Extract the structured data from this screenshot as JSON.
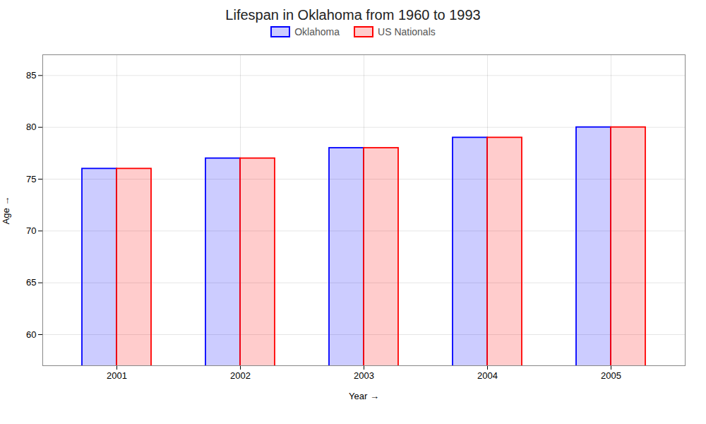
{
  "chart_data": {
    "type": "bar",
    "title": "Lifespan in Oklahoma from 1960 to 1993",
    "xlabel": "Year",
    "ylabel": "Age",
    "categories": [
      "2001",
      "2002",
      "2003",
      "2004",
      "2005"
    ],
    "series": [
      {
        "name": "Oklahoma",
        "color": "#0000ff",
        "values": [
          76,
          77,
          78,
          79,
          80
        ]
      },
      {
        "name": "US Nationals",
        "color": "#ff0000",
        "values": [
          76,
          77,
          78,
          79,
          80
        ]
      }
    ],
    "ylim": [
      57,
      87
    ],
    "yticks": [
      60,
      65,
      70,
      75,
      80,
      85
    ],
    "grid": true,
    "legend": "top"
  }
}
